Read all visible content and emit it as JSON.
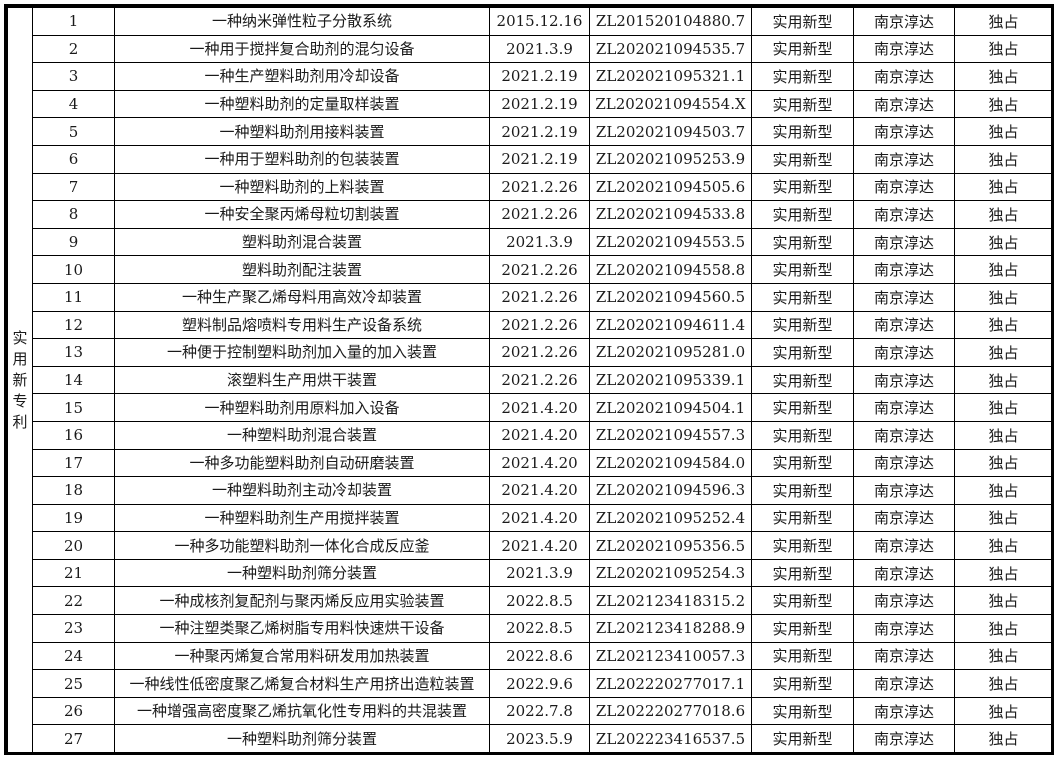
{
  "category": [
    "实",
    "用",
    "新",
    "专",
    "利"
  ],
  "rows": [
    {
      "no": "1",
      "name": "一种纳米弹性粒子分散系统",
      "date": "2015.12.16",
      "patent_no": "ZL201520104880.7",
      "type": "实用新型",
      "owner": "南京淳达",
      "status": "独占"
    },
    {
      "no": "2",
      "name": "一种用于搅拌复合助剂的混匀设备",
      "date": "2021.3.9",
      "patent_no": "ZL202021094535.7",
      "type": "实用新型",
      "owner": "南京淳达",
      "status": "独占"
    },
    {
      "no": "3",
      "name": "一种生产塑料助剂用冷却设备",
      "date": "2021.2.19",
      "patent_no": "ZL202021095321.1",
      "type": "实用新型",
      "owner": "南京淳达",
      "status": "独占"
    },
    {
      "no": "4",
      "name": "一种塑料助剂的定量取样装置",
      "date": "2021.2.19",
      "patent_no": "ZL202021094554.X",
      "type": "实用新型",
      "owner": "南京淳达",
      "status": "独占"
    },
    {
      "no": "5",
      "name": "一种塑料助剂用接料装置",
      "date": "2021.2.19",
      "patent_no": "ZL202021094503.7",
      "type": "实用新型",
      "owner": "南京淳达",
      "status": "独占"
    },
    {
      "no": "6",
      "name": "一种用于塑料助剂的包装装置",
      "date": "2021.2.19",
      "patent_no": "ZL202021095253.9",
      "type": "实用新型",
      "owner": "南京淳达",
      "status": "独占"
    },
    {
      "no": "7",
      "name": "一种塑料助剂的上料装置",
      "date": "2021.2.26",
      "patent_no": "ZL202021094505.6",
      "type": "实用新型",
      "owner": "南京淳达",
      "status": "独占"
    },
    {
      "no": "8",
      "name": "一种安全聚丙烯母粒切割装置",
      "date": "2021.2.26",
      "patent_no": "ZL202021094533.8",
      "type": "实用新型",
      "owner": "南京淳达",
      "status": "独占"
    },
    {
      "no": "9",
      "name": "塑料助剂混合装置",
      "date": "2021.3.9",
      "patent_no": "ZL202021094553.5",
      "type": "实用新型",
      "owner": "南京淳达",
      "status": "独占"
    },
    {
      "no": "10",
      "name": "塑料助剂配注装置",
      "date": "2021.2.26",
      "patent_no": "ZL202021094558.8",
      "type": "实用新型",
      "owner": "南京淳达",
      "status": "独占"
    },
    {
      "no": "11",
      "name": "一种生产聚乙烯母料用高效冷却装置",
      "date": "2021.2.26",
      "patent_no": "ZL202021094560.5",
      "type": "实用新型",
      "owner": "南京淳达",
      "status": "独占"
    },
    {
      "no": "12",
      "name": "塑料制品熔喷料专用料生产设备系统",
      "date": "2021.2.26",
      "patent_no": "ZL202021094611.4",
      "type": "实用新型",
      "owner": "南京淳达",
      "status": "独占"
    },
    {
      "no": "13",
      "name": "一种便于控制塑料助剂加入量的加入装置",
      "date": "2021.2.26",
      "patent_no": "ZL202021095281.0",
      "type": "实用新型",
      "owner": "南京淳达",
      "status": "独占"
    },
    {
      "no": "14",
      "name": "滚塑料生产用烘干装置",
      "date": "2021.2.26",
      "patent_no": "ZL202021095339.1",
      "type": "实用新型",
      "owner": "南京淳达",
      "status": "独占"
    },
    {
      "no": "15",
      "name": "一种塑料助剂用原料加入设备",
      "date": "2021.4.20",
      "patent_no": "ZL202021094504.1",
      "type": "实用新型",
      "owner": "南京淳达",
      "status": "独占"
    },
    {
      "no": "16",
      "name": "一种塑料助剂混合装置",
      "date": "2021.4.20",
      "patent_no": "ZL202021094557.3",
      "type": "实用新型",
      "owner": "南京淳达",
      "status": "独占"
    },
    {
      "no": "17",
      "name": "一种多功能塑料助剂自动研磨装置",
      "date": "2021.4.20",
      "patent_no": "ZL202021094584.0",
      "type": "实用新型",
      "owner": "南京淳达",
      "status": "独占"
    },
    {
      "no": "18",
      "name": "一种塑料助剂主动冷却装置",
      "date": "2021.4.20",
      "patent_no": "ZL202021094596.3",
      "type": "实用新型",
      "owner": "南京淳达",
      "status": "独占"
    },
    {
      "no": "19",
      "name": "一种塑料助剂生产用搅拌装置",
      "date": "2021.4.20",
      "patent_no": "ZL202021095252.4",
      "type": "实用新型",
      "owner": "南京淳达",
      "status": "独占"
    },
    {
      "no": "20",
      "name": "一种多功能塑料助剂一体化合成反应釜",
      "date": "2021.4.20",
      "patent_no": "ZL202021095356.5",
      "type": "实用新型",
      "owner": "南京淳达",
      "status": "独占"
    },
    {
      "no": "21",
      "name": "一种塑料助剂筛分装置",
      "date": "2021.3.9",
      "patent_no": "ZL202021095254.3",
      "type": "实用新型",
      "owner": "南京淳达",
      "status": "独占"
    },
    {
      "no": "22",
      "name": "一种成核剂复配剂与聚丙烯反应用实验装置",
      "date": "2022.8.5",
      "patent_no": "ZL202123418315.2",
      "type": "实用新型",
      "owner": "南京淳达",
      "status": "独占"
    },
    {
      "no": "23",
      "name": "一种注塑类聚乙烯树脂专用料快速烘干设备",
      "date": "2022.8.5",
      "patent_no": "ZL202123418288.9",
      "type": "实用新型",
      "owner": "南京淳达",
      "status": "独占"
    },
    {
      "no": "24",
      "name": "一种聚丙烯复合常用料研发用加热装置",
      "date": "2022.8.6",
      "patent_no": "ZL202123410057.3",
      "type": "实用新型",
      "owner": "南京淳达",
      "status": "独占"
    },
    {
      "no": "25",
      "name": "一种线性低密度聚乙烯复合材料生产用挤出造粒装置",
      "date": "2022.9.6",
      "patent_no": "ZL202220277017.1",
      "type": "实用新型",
      "owner": "南京淳达",
      "status": "独占"
    },
    {
      "no": "26",
      "name": "一种增强高密度聚乙烯抗氧化性专用料的共混装置",
      "date": "2022.7.8",
      "patent_no": "ZL202220277018.6",
      "type": "实用新型",
      "owner": "南京淳达",
      "status": "独占"
    },
    {
      "no": "27",
      "name": "一种塑料助剂筛分装置",
      "date": "2023.5.9",
      "patent_no": "ZL202223416537.5",
      "type": "实用新型",
      "owner": "南京淳达",
      "status": "独占"
    }
  ]
}
